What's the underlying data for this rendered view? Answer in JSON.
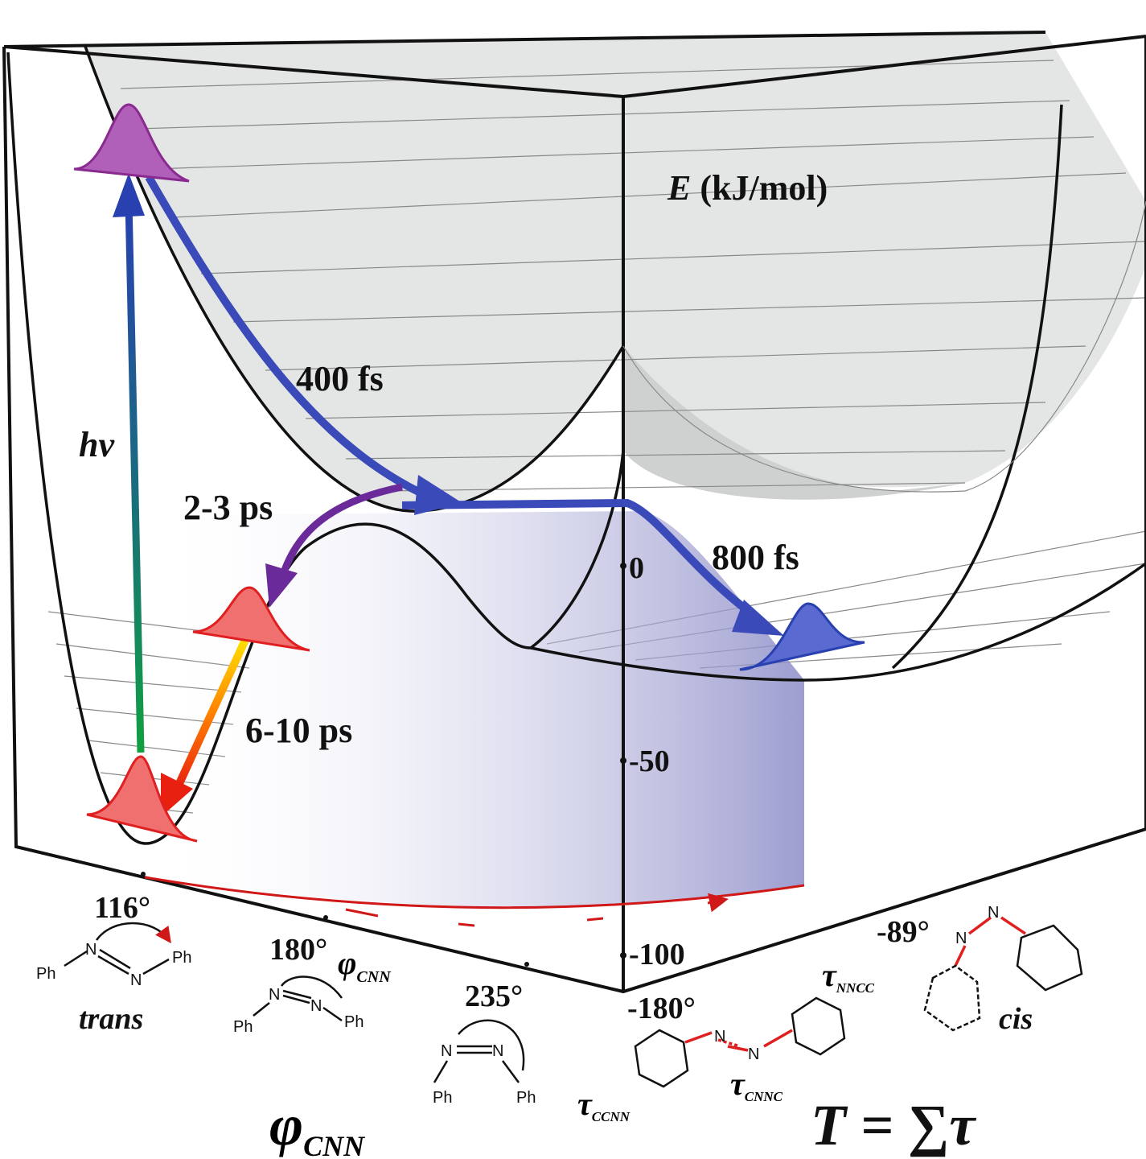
{
  "energy_axis": {
    "symbol": "E",
    "unit": "(kJ/mol)",
    "ticks": [
      "0",
      "-50",
      "-100"
    ]
  },
  "excitation": "hv",
  "timescales": [
    "400 fs",
    "2-3 ps",
    "800 fs",
    "6-10 ps"
  ],
  "phi_axis": {
    "symbol": "φ",
    "subscript": "CNN",
    "ticks": [
      "116°",
      "180°",
      "235°"
    ]
  },
  "torsion_axis": {
    "ticks": [
      "-180°",
      "-89°"
    ],
    "formula": "T = ∑τ"
  },
  "torsions": [
    {
      "symbol": "τ",
      "subscript": "NNCC"
    },
    {
      "symbol": "τ",
      "subscript": "CCNN"
    },
    {
      "symbol": "τ",
      "subscript": "CNNC"
    }
  ],
  "isomers": [
    "trans",
    "cis"
  ],
  "atoms": {
    "phenyl": "Ph",
    "nitrogen": "N"
  }
}
